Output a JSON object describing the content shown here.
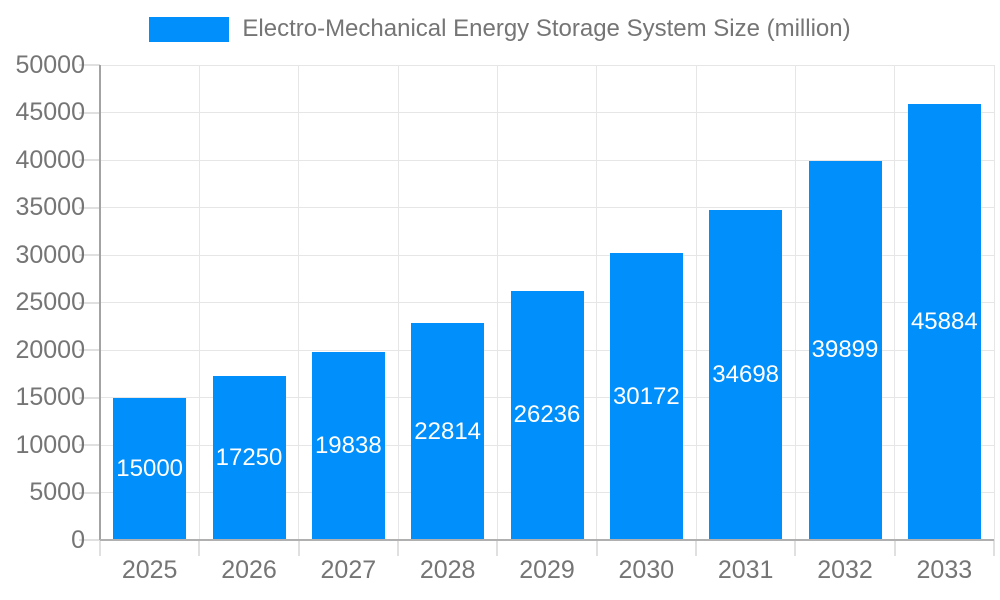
{
  "legend": {
    "label": "Electro-Mechanical Energy Storage System Size (million)"
  },
  "chart_data": {
    "type": "bar",
    "title": "Electro-Mechanical Energy Storage System Size (million)",
    "categories": [
      "2025",
      "2026",
      "2027",
      "2028",
      "2029",
      "2030",
      "2031",
      "2032",
      "2033"
    ],
    "series": [
      {
        "name": "Electro-Mechanical Energy Storage System Size (million)",
        "values": [
          15000,
          17250,
          19838,
          22814,
          26236,
          30172,
          34698,
          39899,
          45884
        ]
      }
    ],
    "xlabel": "",
    "ylabel": "",
    "ylim": [
      0,
      50000
    ],
    "ytick_step": 5000,
    "ytick_labels": [
      "0",
      "5000",
      "10000",
      "15000",
      "20000",
      "25000",
      "30000",
      "35000",
      "40000",
      "45000",
      "50000"
    ],
    "grid": true,
    "legend_position": "top",
    "bar_labels_inside": true,
    "colors": {
      "bar": "#008FFB",
      "bar_label_text": "#ffffff",
      "gridline": "#e6e6e6",
      "tick": "#e0e0e0",
      "y_axis_line": "#a3a3a3",
      "x_axis_line": "#b0b0b0",
      "axis_text": "#757575",
      "background": "#ffffff"
    }
  }
}
